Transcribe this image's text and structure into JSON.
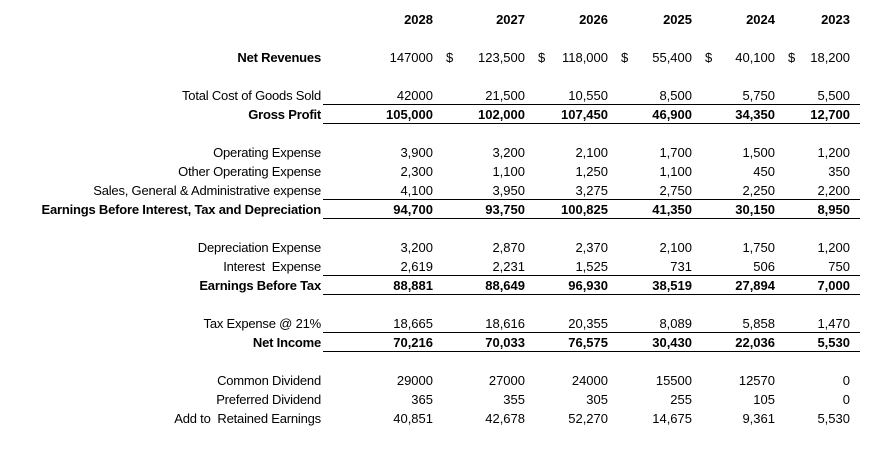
{
  "sheet": {
    "currency_symbol": "$",
    "years": [
      "2028",
      "2027",
      "2026",
      "2025",
      "2024",
      "2023"
    ],
    "rows": [
      {
        "id": "net-revenues",
        "label": "Net Revenues",
        "bold": true,
        "bold_values": false,
        "spacer_before": true,
        "underline": false,
        "dollars": [
          false,
          true,
          true,
          true,
          true,
          true
        ],
        "values": [
          "147000",
          "123,500",
          "118,000",
          "55,400",
          "40,100",
          "18,200"
        ]
      },
      {
        "id": "total-cost-of-goods-sold",
        "label": "Total Cost of Goods Sold",
        "bold": false,
        "bold_values": false,
        "spacer_before": true,
        "underline": true,
        "values": [
          "42000",
          "21,500",
          "10,550",
          "8,500",
          "5,750",
          "5,500"
        ]
      },
      {
        "id": "gross-profit",
        "label": "Gross Profit",
        "bold": true,
        "bold_values": true,
        "spacer_before": false,
        "underline": true,
        "values": [
          "105,000",
          "102,000",
          "107,450",
          "46,900",
          "34,350",
          "12,700"
        ]
      },
      {
        "id": "operating-expense",
        "label": "Operating Expense",
        "bold": false,
        "bold_values": false,
        "spacer_before": true,
        "underline": false,
        "values": [
          "3,900",
          "3,200",
          "2,100",
          "1,700",
          "1,500",
          "1,200"
        ]
      },
      {
        "id": "other-operating-expense",
        "label": "Other Operating Expense",
        "bold": false,
        "bold_values": false,
        "spacer_before": false,
        "underline": false,
        "values": [
          "2,300",
          "1,100",
          "1,250",
          "1,100",
          "450",
          "350"
        ]
      },
      {
        "id": "sales-general-administrative-expense",
        "label": "Sales, General & Administrative expense",
        "bold": false,
        "bold_values": false,
        "spacer_before": false,
        "underline": true,
        "values": [
          "4,100",
          "3,950",
          "3,275",
          "2,750",
          "2,250",
          "2,200"
        ]
      },
      {
        "id": "earnings-before-interest-tax-and-depreciation",
        "label": "Earnings Before Interest, Tax and Depreciation",
        "bold": true,
        "bold_values": true,
        "spacer_before": false,
        "underline": true,
        "values": [
          "94,700",
          "93,750",
          "100,825",
          "41,350",
          "30,150",
          "8,950"
        ]
      },
      {
        "id": "depreciation-expense",
        "label": "Depreciation Expense",
        "bold": false,
        "bold_values": false,
        "spacer_before": true,
        "underline": false,
        "values": [
          "3,200",
          "2,870",
          "2,370",
          "2,100",
          "1,750",
          "1,200"
        ]
      },
      {
        "id": "interest-expense",
        "label": "Interest  Expense",
        "bold": false,
        "bold_values": false,
        "spacer_before": false,
        "underline": true,
        "values": [
          "2,619",
          "2,231",
          "1,525",
          "731",
          "506",
          "750"
        ]
      },
      {
        "id": "earnings-before-tax",
        "label": "Earnings Before Tax",
        "bold": true,
        "bold_values": true,
        "spacer_before": false,
        "underline": true,
        "values": [
          "88,881",
          "88,649",
          "96,930",
          "38,519",
          "27,894",
          "7,000"
        ]
      },
      {
        "id": "tax-expense",
        "label": "Tax Expense @ 21%",
        "bold": false,
        "bold_values": false,
        "spacer_before": true,
        "underline": true,
        "values": [
          "18,665",
          "18,616",
          "20,355",
          "8,089",
          "5,858",
          "1,470"
        ]
      },
      {
        "id": "net-income",
        "label": "Net Income",
        "bold": true,
        "bold_values": true,
        "spacer_before": false,
        "underline": true,
        "values": [
          "70,216",
          "70,033",
          "76,575",
          "30,430",
          "22,036",
          "5,530"
        ]
      },
      {
        "id": "common-dividend",
        "label": "Common Dividend",
        "bold": false,
        "bold_values": false,
        "spacer_before": true,
        "underline": false,
        "values": [
          "29000",
          "27000",
          "24000",
          "15500",
          "12570",
          "0"
        ]
      },
      {
        "id": "preferred-dividend",
        "label": "Preferred Dividend",
        "bold": false,
        "bold_values": false,
        "spacer_before": false,
        "underline": false,
        "values": [
          "365",
          "355",
          "305",
          "255",
          "105",
          "0"
        ]
      },
      {
        "id": "add-to-retained-earnings",
        "label": "Add to  Retained Earnings",
        "bold": false,
        "bold_values": false,
        "spacer_before": false,
        "underline": false,
        "values": [
          "40,851",
          "42,678",
          "52,270",
          "14,675",
          "9,361",
          "5,530"
        ]
      }
    ]
  },
  "colors": {
    "text": "#000000",
    "line": "#000000",
    "background": "#ffffff"
  }
}
